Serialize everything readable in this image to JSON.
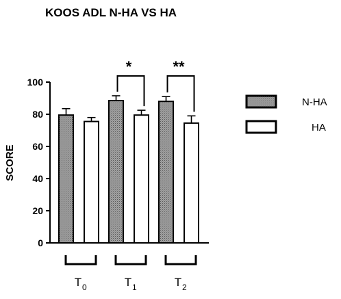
{
  "chart_data": {
    "type": "bar",
    "title": "KOOS ADL N-HA VS HA",
    "ylabel": "SCORE",
    "xlabel": "",
    "ylim": [
      0,
      100
    ],
    "yticks": [
      0,
      20,
      40,
      60,
      80,
      100
    ],
    "categories": [
      {
        "base": "T",
        "sub": "0"
      },
      {
        "base": "T",
        "sub": "1"
      },
      {
        "base": "T",
        "sub": "2"
      }
    ],
    "series": [
      {
        "name": "N-HA",
        "values": [
          79.5,
          88.5,
          88.0
        ],
        "errors": [
          4.0,
          3.0,
          3.0
        ],
        "fill": "pattern-gray"
      },
      {
        "name": "HA",
        "values": [
          75.5,
          79.5,
          74.5
        ],
        "errors": [
          2.5,
          3.0,
          4.5
        ],
        "fill": "#ffffff"
      }
    ],
    "significance": [
      "",
      "*",
      "**"
    ],
    "legend_position": "right",
    "colors": {
      "nha_fill": "#9a9a9a",
      "nha_dot": "#5a5a5a",
      "ha_fill": "#ffffff",
      "stroke": "#000000"
    }
  }
}
